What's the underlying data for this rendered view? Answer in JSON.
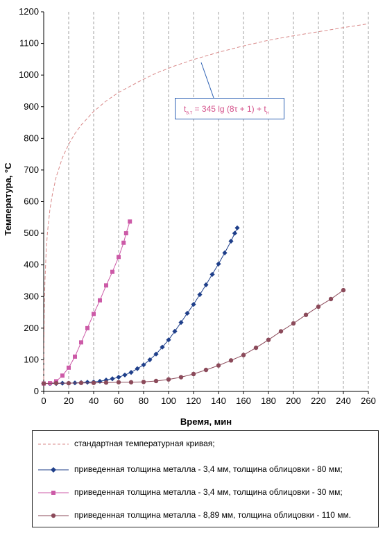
{
  "chart_data": {
    "type": "line",
    "xlabel": "Время, мин",
    "ylabel": "Температура, °С",
    "xlim": [
      0,
      260
    ],
    "ylim": [
      0,
      1200
    ],
    "xticks": [
      0,
      20,
      40,
      60,
      80,
      100,
      120,
      140,
      160,
      180,
      200,
      220,
      240,
      260
    ],
    "yticks": [
      0,
      100,
      200,
      300,
      400,
      500,
      600,
      700,
      800,
      900,
      1000,
      1100,
      1200
    ],
    "grid": "vertical-dashed",
    "legend_position": "bottom",
    "annotation": {
      "text_main": "t",
      "sub1": "в.т",
      "text_mid": " = 345 lg (8τ + 1) + t",
      "sub2": "н"
    },
    "series": [
      {
        "name": "стандартная температурная кривая;",
        "style": "dashed",
        "color": "#d98a8a",
        "marker": "none",
        "points": [
          [
            0,
            20
          ],
          [
            0.5,
            260
          ],
          [
            1,
            349
          ],
          [
            2,
            445
          ],
          [
            3,
            502
          ],
          [
            5,
            576
          ],
          [
            7,
            624
          ],
          [
            10,
            678
          ],
          [
            15,
            739
          ],
          [
            20,
            781
          ],
          [
            25,
            815
          ],
          [
            30,
            842
          ],
          [
            40,
            885
          ],
          [
            50,
            918
          ],
          [
            60,
            945
          ],
          [
            75,
            977
          ],
          [
            90,
            1006
          ],
          [
            105,
            1029
          ],
          [
            120,
            1049
          ],
          [
            140,
            1072
          ],
          [
            160,
            1092
          ],
          [
            180,
            1110
          ],
          [
            200,
            1124
          ],
          [
            220,
            1137
          ],
          [
            240,
            1150
          ],
          [
            260,
            1162
          ]
        ]
      },
      {
        "name": "приведенная толщина металла - 3,4 мм, толщина облицовки - 80 мм;",
        "style": "solid",
        "color": "#1f3f8a",
        "marker": "diamond",
        "points": [
          [
            0,
            25
          ],
          [
            5,
            25
          ],
          [
            10,
            25
          ],
          [
            15,
            26
          ],
          [
            20,
            26
          ],
          [
            25,
            27
          ],
          [
            30,
            28
          ],
          [
            35,
            29
          ],
          [
            40,
            30
          ],
          [
            45,
            32
          ],
          [
            50,
            36
          ],
          [
            55,
            40
          ],
          [
            60,
            45
          ],
          [
            65,
            52
          ],
          [
            70,
            60
          ],
          [
            75,
            72
          ],
          [
            80,
            84
          ],
          [
            85,
            100
          ],
          [
            90,
            118
          ],
          [
            95,
            140
          ],
          [
            100,
            163
          ],
          [
            105,
            190
          ],
          [
            110,
            218
          ],
          [
            115,
            247
          ],
          [
            120,
            275
          ],
          [
            125,
            306
          ],
          [
            130,
            337
          ],
          [
            135,
            370
          ],
          [
            140,
            403
          ],
          [
            145,
            438
          ],
          [
            150,
            475
          ],
          [
            153,
            500
          ],
          [
            155,
            517
          ]
        ]
      },
      {
        "name": "приведенная толщина металла - 3,4 мм, толщина облицовки - 30 мм;",
        "style": "solid",
        "color": "#cc5aa7",
        "marker": "square",
        "points": [
          [
            0,
            25
          ],
          [
            5,
            26
          ],
          [
            10,
            32
          ],
          [
            15,
            50
          ],
          [
            20,
            75
          ],
          [
            25,
            110
          ],
          [
            30,
            155
          ],
          [
            35,
            200
          ],
          [
            40,
            245
          ],
          [
            45,
            288
          ],
          [
            50,
            335
          ],
          [
            55,
            378
          ],
          [
            60,
            425
          ],
          [
            64,
            470
          ],
          [
            66,
            500
          ],
          [
            69,
            537
          ]
        ]
      },
      {
        "name": "приведенная толщина металла - 8,89 мм, толщина облицовки - 110 мм.",
        "style": "solid",
        "color": "#8b4a5a",
        "marker": "circle",
        "points": [
          [
            0,
            25
          ],
          [
            10,
            26
          ],
          [
            20,
            26
          ],
          [
            30,
            27
          ],
          [
            40,
            27
          ],
          [
            50,
            28
          ],
          [
            60,
            29
          ],
          [
            70,
            29
          ],
          [
            80,
            30
          ],
          [
            90,
            33
          ],
          [
            100,
            38
          ],
          [
            110,
            45
          ],
          [
            120,
            55
          ],
          [
            130,
            68
          ],
          [
            140,
            82
          ],
          [
            150,
            98
          ],
          [
            160,
            115
          ],
          [
            170,
            138
          ],
          [
            180,
            163
          ],
          [
            190,
            190
          ],
          [
            200,
            215
          ],
          [
            210,
            242
          ],
          [
            220,
            268
          ],
          [
            230,
            292
          ],
          [
            240,
            320
          ]
        ]
      }
    ]
  }
}
